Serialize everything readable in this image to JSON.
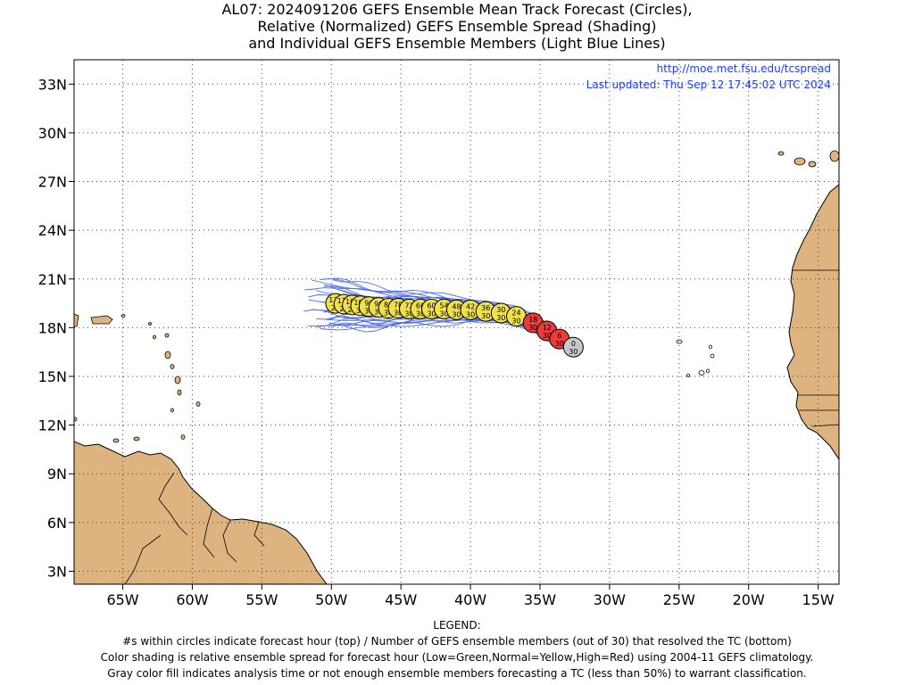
{
  "title": {
    "line1": "AL07: 2024091206 GEFS Ensemble Mean Track Forecast (Circles),",
    "line2": "Relative (Normalized) GEFS Ensemble Spread (Shading)",
    "line3": "and Individual GEFS Ensemble Members (Light Blue Lines)"
  },
  "map_info": {
    "url": "http://moe.met.fsu.edu/tcspread",
    "last_updated": "Last updated: Thu Sep 12 17:45:02 UTC 2024",
    "link_color": "#1e3cff"
  },
  "axes": {
    "lon_labels": [
      "65W",
      "60W",
      "55W",
      "50W",
      "45W",
      "40W",
      "35W",
      "30W",
      "25W",
      "20W",
      "15W"
    ],
    "lat_labels": [
      "33N",
      "30N",
      "27N",
      "24N",
      "21N",
      "18N",
      "15N",
      "12N",
      "9N",
      "6N",
      "3N"
    ],
    "lon_range": [
      -68.5,
      -13.5
    ],
    "lat_range": [
      2.2,
      34.5
    ],
    "grid": "dotted"
  },
  "colors": {
    "land": "#ddb47f",
    "ocean": "#ffffff",
    "member_line": "#4d6bf0",
    "normal_spread": "#f0e04a",
    "high_spread": "#f03a3a",
    "analysis": "#c8c8c8"
  },
  "track_points": [
    {
      "hour": "0",
      "members": "30",
      "lon": -32.6,
      "lat": 16.8,
      "spread": "analysis"
    },
    {
      "hour": "6",
      "members": "30",
      "lon": -33.6,
      "lat": 17.3,
      "spread": "high"
    },
    {
      "hour": "12",
      "members": "30",
      "lon": -34.5,
      "lat": 17.8,
      "spread": "high"
    },
    {
      "hour": "18",
      "members": "30",
      "lon": -35.5,
      "lat": 18.3,
      "spread": "high"
    },
    {
      "hour": "24",
      "members": "30",
      "lon": -36.7,
      "lat": 18.7,
      "spread": "normal"
    },
    {
      "hour": "30",
      "members": "30",
      "lon": -37.8,
      "lat": 18.9,
      "spread": "normal"
    },
    {
      "hour": "36",
      "members": "30",
      "lon": -38.9,
      "lat": 19.0,
      "spread": "normal"
    },
    {
      "hour": "42",
      "members": "30",
      "lon": -40.0,
      "lat": 19.1,
      "spread": "normal"
    },
    {
      "hour": "48",
      "members": "30",
      "lon": -41.0,
      "lat": 19.1,
      "spread": "normal"
    },
    {
      "hour": "54",
      "members": "30",
      "lon": -41.9,
      "lat": 19.15,
      "spread": "normal"
    },
    {
      "hour": "60",
      "members": "30",
      "lon": -42.8,
      "lat": 19.15,
      "spread": "normal"
    },
    {
      "hour": "66",
      "members": "30",
      "lon": -43.6,
      "lat": 19.15,
      "spread": "normal"
    },
    {
      "hour": "72",
      "members": "30",
      "lon": -44.4,
      "lat": 19.15,
      "spread": "normal"
    },
    {
      "hour": "78",
      "members": "30",
      "lon": -45.2,
      "lat": 19.2,
      "spread": "normal"
    },
    {
      "hour": "84",
      "members": "30",
      "lon": -45.9,
      "lat": 19.2,
      "spread": "normal"
    },
    {
      "hour": "90",
      "members": "30",
      "lon": -46.6,
      "lat": 19.25,
      "spread": "normal"
    },
    {
      "hour": "96",
      "members": "30",
      "lon": -47.3,
      "lat": 19.3,
      "spread": "normal"
    },
    {
      "hour": "102",
      "members": "30",
      "lon": -47.9,
      "lat": 19.35,
      "spread": "normal"
    },
    {
      "hour": "108",
      "members": "29",
      "lon": -48.5,
      "lat": 19.4,
      "spread": "normal"
    },
    {
      "hour": "114",
      "members": "29",
      "lon": -49.1,
      "lat": 19.45,
      "spread": "normal"
    },
    {
      "hour": "120",
      "members": "29",
      "lon": -49.7,
      "lat": 19.5,
      "spread": "normal"
    }
  ],
  "legend": {
    "heading": "LEGEND:",
    "line1": "#s within circles indicate forecast hour (top) / Number of GEFS ensemble members (out of 30) that resolved the TC (bottom)",
    "line2": "Color shading is relative ensemble spread for forecast hour (Low=Green,Normal=Yellow,High=Red) using 2004-11 GEFS climatology.",
    "line3": "Gray color fill indicates analysis time or not enough ensemble members forecasting a TC (less than 50%) to warrant classification."
  }
}
